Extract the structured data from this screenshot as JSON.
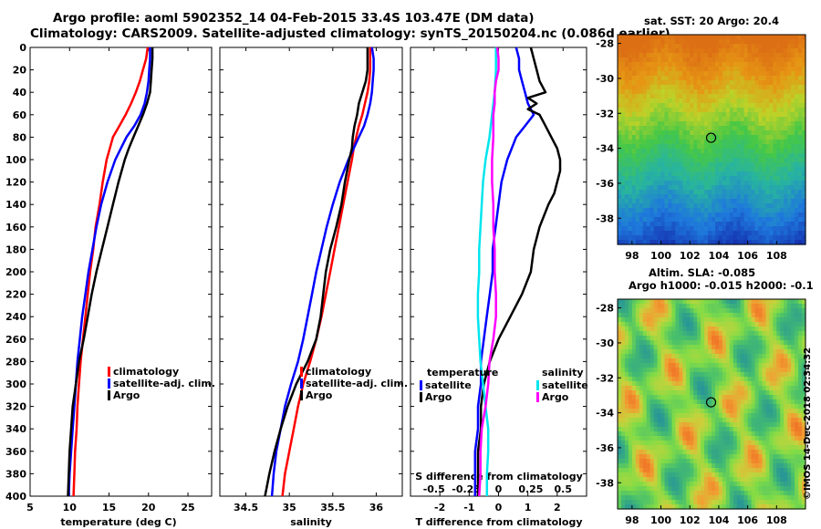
{
  "header": {
    "line1": "Argo profile: aoml 5902352_14 04-Feb-2015 33.4S 103.47E (DM data)",
    "line2": "Climatology: CARS2009. Satellite-adjusted climatology: synTS_20150204.nc (0.086d earlier)"
  },
  "right_panel": {
    "sst_title": "sat. SST: 20 Argo: 20.4",
    "sla_line1": "Altim. SLA: -0.085",
    "sla_line2": "Argo h1000: -0.015 h2000: -0.1",
    "watermark": "©IMOS 14-Dec-2018 02:34:32"
  },
  "colors": {
    "climatology": "#ff0000",
    "satellite": "#0000ff",
    "argo": "#000000",
    "salinity_satellite": "#00e5ee",
    "salinity_argo": "#ff00ff"
  },
  "chart_data": [
    {
      "type": "line",
      "id": "temperature",
      "xlabel": "temperature (deg C)",
      "ylabel": "depth",
      "xlim": [
        5,
        28
      ],
      "ylim": [
        400,
        0
      ],
      "xticks": [
        "5",
        "10",
        "15",
        "20",
        "25"
      ],
      "yticks": [
        "0",
        "20",
        "40",
        "60",
        "80",
        "100",
        "120",
        "140",
        "160",
        "180",
        "200",
        "220",
        "240",
        "260",
        "280",
        "300",
        "320",
        "340",
        "360",
        "380",
        "400"
      ],
      "legend": [
        "climatology",
        "satellite-adj. clim.",
        "Argo"
      ],
      "series": [
        {
          "name": "climatology",
          "depth": [
            0,
            10,
            20,
            30,
            40,
            50,
            60,
            70,
            80,
            90,
            100,
            120,
            140,
            160,
            180,
            200,
            220,
            240,
            260,
            280,
            300,
            320,
            340,
            360,
            380,
            400
          ],
          "values": [
            19.9,
            19.7,
            19.3,
            18.9,
            18.4,
            17.8,
            17.1,
            16.3,
            15.5,
            15.1,
            14.7,
            14.2,
            13.8,
            13.3,
            13.0,
            12.6,
            12.3,
            12.0,
            11.7,
            11.4,
            11.2,
            11.0,
            10.9,
            10.7,
            10.6,
            10.5
          ]
        },
        {
          "name": "satellite-adj. clim.",
          "depth": [
            0,
            10,
            20,
            30,
            40,
            50,
            60,
            70,
            80,
            90,
            100,
            120,
            140,
            160,
            180,
            200,
            220,
            240,
            260,
            280,
            300,
            320,
            340,
            360,
            380,
            400
          ],
          "values": [
            20.2,
            20.2,
            20.1,
            20.0,
            19.8,
            19.5,
            19.0,
            18.2,
            17.2,
            16.5,
            15.8,
            14.8,
            14.0,
            13.4,
            12.9,
            12.4,
            12.0,
            11.6,
            11.3,
            11.0,
            10.8,
            10.6,
            10.4,
            10.2,
            10.0,
            9.9
          ]
        },
        {
          "name": "Argo",
          "depth": [
            0,
            10,
            20,
            30,
            40,
            50,
            60,
            70,
            80,
            90,
            100,
            120,
            140,
            160,
            180,
            200,
            220,
            240,
            260,
            280,
            300,
            320,
            340,
            360,
            380,
            400
          ],
          "values": [
            20.5,
            20.5,
            20.4,
            20.3,
            20.2,
            19.8,
            19.3,
            18.7,
            18.1,
            17.5,
            17.0,
            16.2,
            15.5,
            14.8,
            14.1,
            13.4,
            12.8,
            12.3,
            11.8,
            11.2,
            10.8,
            10.4,
            10.2,
            10.0,
            9.9,
            9.8
          ]
        }
      ]
    },
    {
      "type": "line",
      "id": "salinity",
      "xlabel": "salinity",
      "ylabel": "depth",
      "xlim": [
        34.2,
        36.3
      ],
      "ylim": [
        400,
        0
      ],
      "xticks": [
        "34.5",
        "35",
        "35.5",
        "36"
      ],
      "legend": [
        "climatology",
        "satellite-adj. clim.",
        "Argo"
      ],
      "series": [
        {
          "name": "climatology",
          "depth": [
            0,
            10,
            20,
            30,
            40,
            50,
            60,
            70,
            80,
            90,
            100,
            120,
            140,
            160,
            180,
            200,
            220,
            240,
            260,
            280,
            300,
            320,
            340,
            360,
            380,
            400
          ],
          "values": [
            35.93,
            35.93,
            35.93,
            35.92,
            35.9,
            35.87,
            35.84,
            35.8,
            35.77,
            35.74,
            35.72,
            35.67,
            35.62,
            35.57,
            35.52,
            35.47,
            35.42,
            35.37,
            35.31,
            35.24,
            35.16,
            35.1,
            35.05,
            35.0,
            34.95,
            34.92
          ]
        },
        {
          "name": "satellite-adj. clim.",
          "depth": [
            0,
            10,
            20,
            30,
            40,
            50,
            60,
            70,
            80,
            90,
            100,
            120,
            140,
            160,
            180,
            200,
            220,
            240,
            260,
            280,
            300,
            320,
            340,
            360,
            380,
            400
          ],
          "values": [
            35.95,
            35.97,
            35.97,
            35.96,
            35.95,
            35.93,
            35.9,
            35.86,
            35.8,
            35.74,
            35.68,
            35.58,
            35.5,
            35.43,
            35.37,
            35.31,
            35.26,
            35.21,
            35.16,
            35.1,
            35.02,
            34.95,
            34.9,
            34.85,
            34.82,
            34.8
          ]
        },
        {
          "name": "Argo",
          "depth": [
            0,
            10,
            20,
            30,
            40,
            50,
            60,
            70,
            80,
            90,
            100,
            120,
            140,
            160,
            180,
            200,
            220,
            240,
            260,
            280,
            300,
            320,
            340,
            360,
            380,
            400
          ],
          "values": [
            35.9,
            35.9,
            35.9,
            35.88,
            35.84,
            35.8,
            35.78,
            35.75,
            35.73,
            35.72,
            35.69,
            35.64,
            35.6,
            35.54,
            35.47,
            35.42,
            35.39,
            35.36,
            35.31,
            35.21,
            35.08,
            34.98,
            34.9,
            34.83,
            34.77,
            34.72
          ]
        }
      ]
    },
    {
      "type": "line",
      "id": "differences",
      "xlabel": "T difference from climatology",
      "top_axis_label": "S difference from climatology",
      "xlim": [
        -3,
        3
      ],
      "ylim": [
        400,
        0
      ],
      "xticks": [
        "-2",
        "-1",
        "0",
        "1",
        "2"
      ],
      "top_xticks": [
        "-0.5",
        "-0.25",
        "0",
        "0.25",
        "0.5"
      ],
      "legend_temperature_title": "temperature",
      "legend_salinity_title": "salinity",
      "legend_temperature": [
        "satellite",
        "Argo"
      ],
      "legend_salinity": [
        "satellite",
        "Argo"
      ],
      "series": [
        {
          "name": "temperature satellite",
          "depth": [
            0,
            10,
            20,
            30,
            40,
            50,
            60,
            70,
            80,
            100,
            120,
            140,
            160,
            180,
            200,
            220,
            240,
            260,
            280,
            300,
            320,
            340,
            360,
            380,
            400
          ],
          "values": [
            0.6,
            0.7,
            0.7,
            0.8,
            0.9,
            1.0,
            1.2,
            0.9,
            0.6,
            0.3,
            0.1,
            0.0,
            -0.1,
            -0.2,
            -0.2,
            -0.3,
            -0.4,
            -0.5,
            -0.6,
            -0.6,
            -0.7,
            -0.7,
            -0.8,
            -0.8,
            -0.8
          ]
        },
        {
          "name": "temperature Argo",
          "depth": [
            0,
            10,
            20,
            30,
            40,
            45,
            50,
            55,
            60,
            70,
            80,
            90,
            100,
            110,
            120,
            130,
            140,
            160,
            180,
            200,
            220,
            240,
            260,
            280,
            300,
            320,
            340,
            360,
            380,
            400
          ],
          "values": [
            1.1,
            1.2,
            1.3,
            1.4,
            1.6,
            1.0,
            1.3,
            1.0,
            1.4,
            1.6,
            1.8,
            2.0,
            2.1,
            2.1,
            2.0,
            1.9,
            1.7,
            1.4,
            1.2,
            1.1,
            0.8,
            0.4,
            0.0,
            -0.3,
            -0.5,
            -0.6,
            -0.6,
            -0.7,
            -0.7,
            -0.7
          ]
        },
        {
          "name": "salinity satellite",
          "depth": [
            0,
            20,
            40,
            60,
            80,
            100,
            120,
            140,
            160,
            180,
            200,
            220,
            240,
            260,
            280,
            300,
            320,
            340,
            360,
            380,
            400
          ],
          "values": [
            -0.02,
            -0.02,
            -0.03,
            -0.05,
            -0.07,
            -0.1,
            -0.12,
            -0.13,
            -0.14,
            -0.15,
            -0.15,
            -0.16,
            -0.16,
            -0.15,
            -0.14,
            -0.12,
            -0.1,
            -0.08,
            -0.08,
            -0.09,
            -0.09
          ]
        },
        {
          "name": "salinity Argo",
          "depth": [
            0,
            10,
            20,
            30,
            40,
            50,
            60,
            80,
            100,
            120,
            140,
            160,
            180,
            200,
            220,
            240,
            260,
            280,
            300,
            320,
            340,
            360,
            380,
            400
          ],
          "values": [
            -0.01,
            0.0,
            0.0,
            -0.02,
            -0.03,
            -0.03,
            -0.04,
            -0.04,
            -0.05,
            -0.05,
            -0.04,
            -0.04,
            -0.03,
            -0.03,
            -0.02,
            -0.02,
            -0.04,
            -0.07,
            -0.08,
            -0.1,
            -0.13,
            -0.14,
            -0.14,
            -0.15
          ]
        }
      ]
    },
    {
      "type": "heatmap",
      "id": "sst_map",
      "title": "sat. SST: 20 Argo: 20.4",
      "xlim": [
        97,
        110
      ],
      "ylim": [
        -39.5,
        -27.5
      ],
      "xticks": [
        "98",
        "100",
        "102",
        "104",
        "106",
        "108"
      ],
      "yticks": [
        "-28",
        "-30",
        "-32",
        "-34",
        "-36",
        "-38"
      ],
      "argo_position": [
        103.47,
        -33.4
      ]
    },
    {
      "type": "heatmap",
      "id": "sla_map",
      "title": "Altim. SLA: -0.085",
      "xlim": [
        97,
        110
      ],
      "ylim": [
        -39.5,
        -27.5
      ],
      "xticks": [
        "98",
        "100",
        "102",
        "104",
        "106",
        "108"
      ],
      "yticks": [
        "-28",
        "-30",
        "-32",
        "-34",
        "-36",
        "-38"
      ],
      "argo_position": [
        103.47,
        -33.4
      ]
    }
  ]
}
